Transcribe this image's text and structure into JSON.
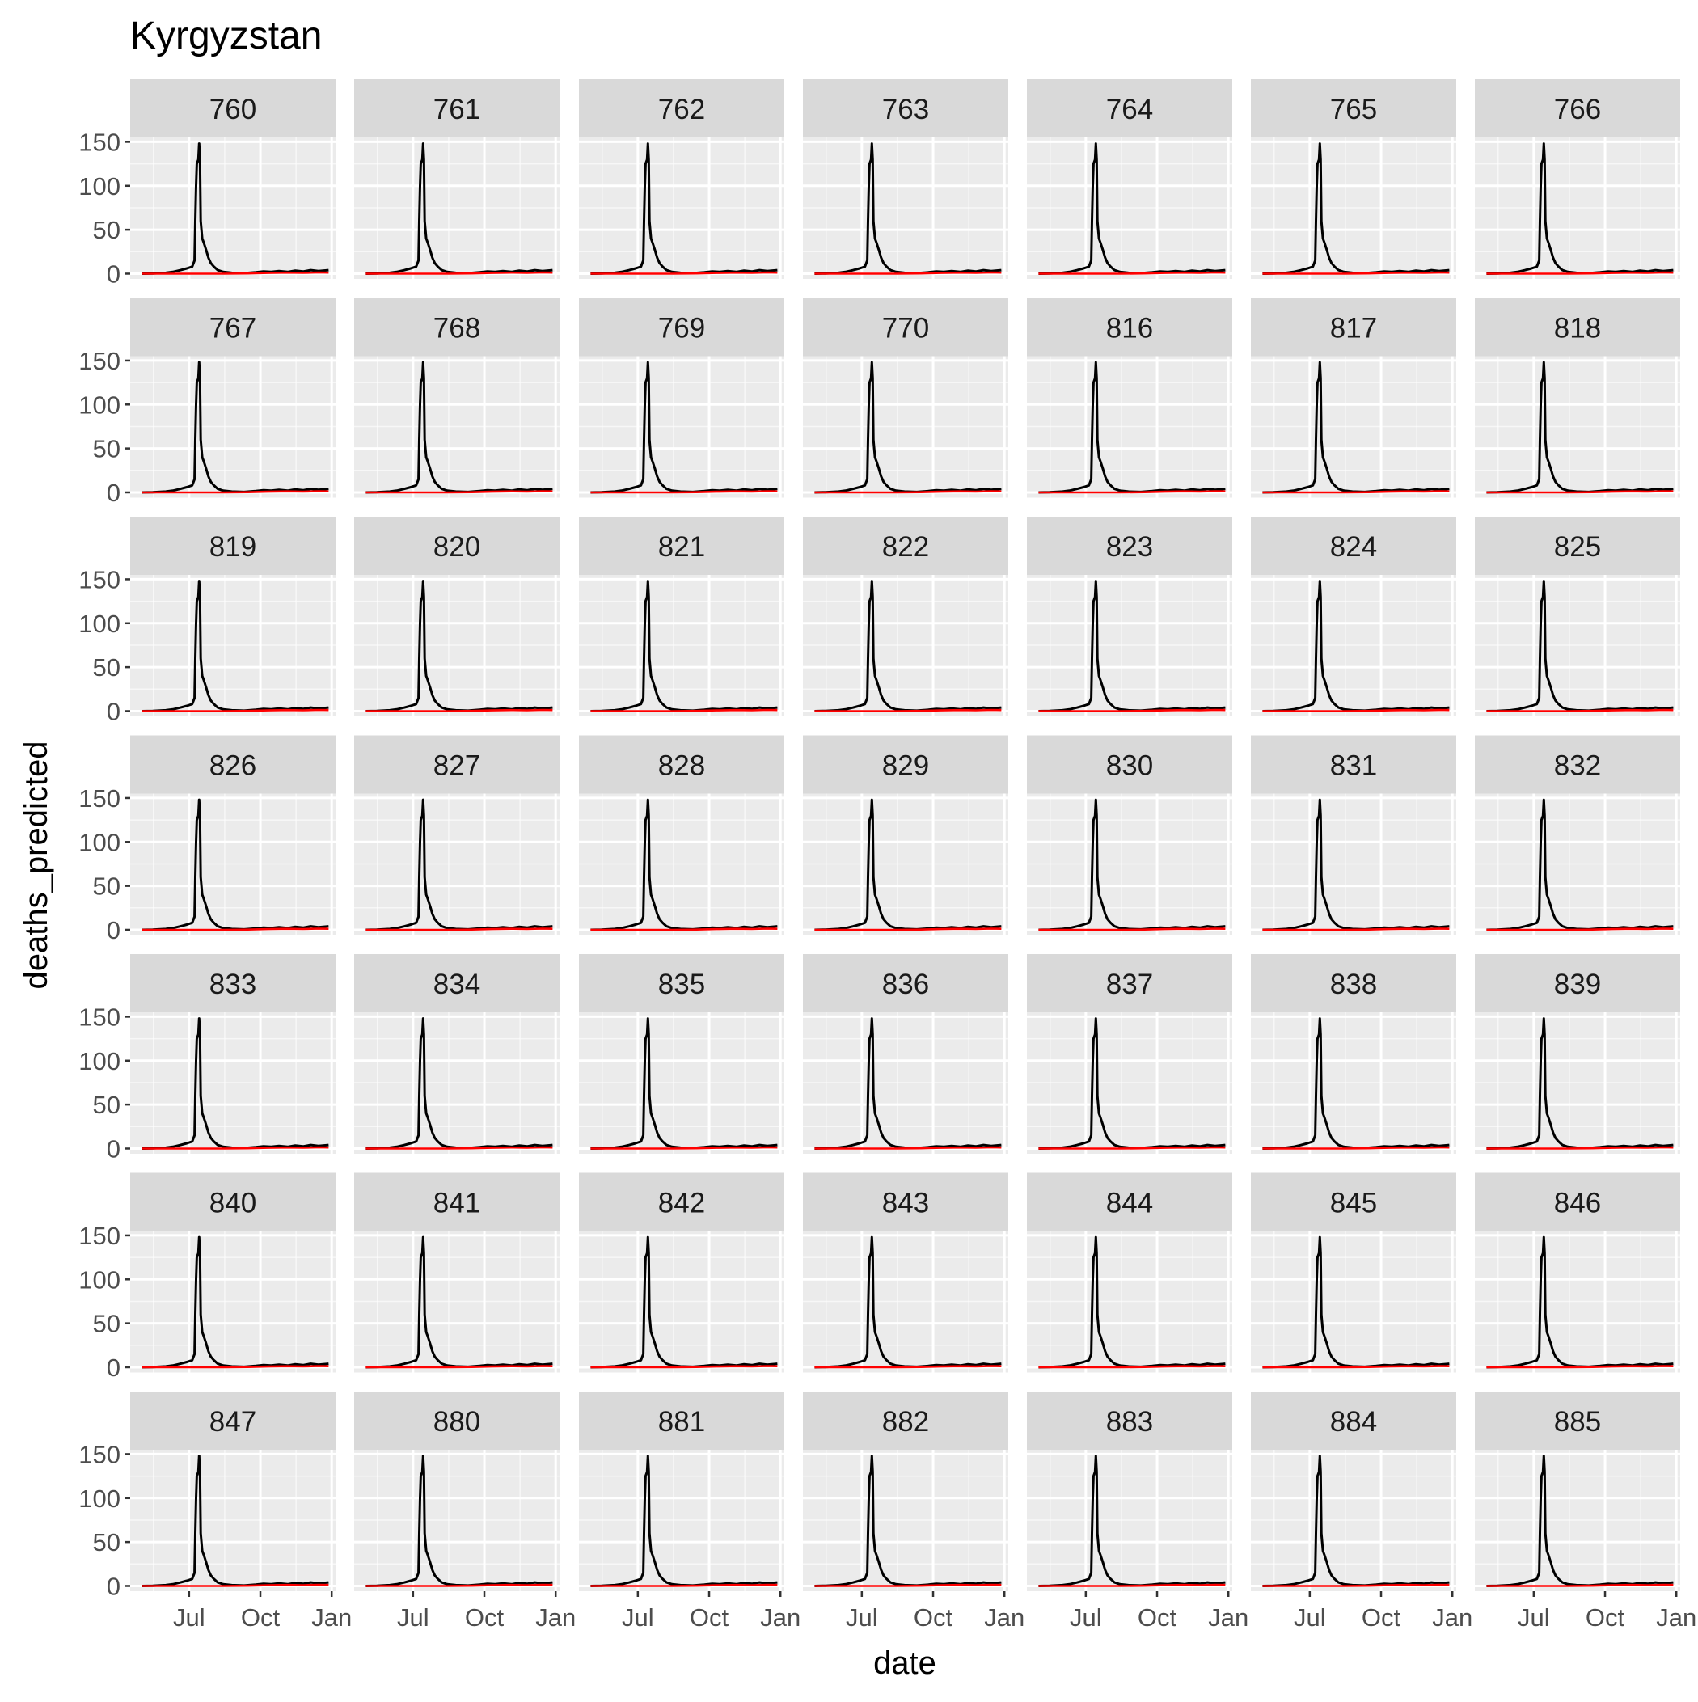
{
  "chart_data": {
    "type": "line",
    "title": "Kyrgyzstan",
    "xlabel": "date",
    "ylabel": "deaths_predicted",
    "facet_labels": [
      "760",
      "761",
      "762",
      "763",
      "764",
      "765",
      "766",
      "767",
      "768",
      "769",
      "770",
      "816",
      "817",
      "818",
      "819",
      "820",
      "821",
      "822",
      "823",
      "824",
      "825",
      "826",
      "827",
      "828",
      "829",
      "830",
      "831",
      "832",
      "833",
      "834",
      "835",
      "836",
      "837",
      "838",
      "839",
      "840",
      "841",
      "842",
      "843",
      "844",
      "845",
      "846",
      "847",
      "880",
      "881",
      "882",
      "883",
      "884",
      "885"
    ],
    "facet_ncol": 7,
    "x_ticks": [
      "Jul",
      "Oct",
      "Jan"
    ],
    "x_tick_positions": [
      "2020-07-01",
      "2020-10-01",
      "2021-01-01"
    ],
    "xlim": [
      "2020-04-16",
      "2021-01-06"
    ],
    "y_ticks": [
      0,
      50,
      100,
      150
    ],
    "ylim": [
      -6,
      155
    ],
    "grid": true,
    "series": [
      {
        "color": "#000000",
        "points": [
          [
            "2020-05-01",
            0
          ],
          [
            "2020-05-15",
            0.3
          ],
          [
            "2020-06-01",
            1
          ],
          [
            "2020-06-10",
            2
          ],
          [
            "2020-06-20",
            4
          ],
          [
            "2020-06-28",
            6
          ],
          [
            "2020-07-05",
            8
          ],
          [
            "2020-07-08",
            15
          ],
          [
            "2020-07-09",
            60
          ],
          [
            "2020-07-10",
            100
          ],
          [
            "2020-07-11",
            125
          ],
          [
            "2020-07-13",
            130
          ],
          [
            "2020-07-14",
            148
          ],
          [
            "2020-07-15",
            130
          ],
          [
            "2020-07-16",
            60
          ],
          [
            "2020-07-18",
            40
          ],
          [
            "2020-07-20",
            35
          ],
          [
            "2020-07-23",
            27
          ],
          [
            "2020-07-26",
            18
          ],
          [
            "2020-07-29",
            12
          ],
          [
            "2020-08-02",
            8
          ],
          [
            "2020-08-07",
            4
          ],
          [
            "2020-08-14",
            2
          ],
          [
            "2020-08-25",
            1
          ],
          [
            "2020-09-10",
            0.5
          ],
          [
            "2020-09-25",
            1.5
          ],
          [
            "2020-10-05",
            2.5
          ],
          [
            "2020-10-15",
            2
          ],
          [
            "2020-10-25",
            3
          ],
          [
            "2020-11-05",
            2
          ],
          [
            "2020-11-15",
            3.5
          ],
          [
            "2020-11-25",
            2.5
          ],
          [
            "2020-12-05",
            4
          ],
          [
            "2020-12-15",
            3
          ],
          [
            "2020-12-28",
            4
          ]
        ]
      },
      {
        "color": "#ff0000",
        "points": [
          [
            "2020-05-01",
            0
          ],
          [
            "2020-07-01",
            0
          ],
          [
            "2020-08-15",
            0
          ],
          [
            "2020-09-15",
            0.3
          ],
          [
            "2020-10-10",
            0.8
          ],
          [
            "2020-11-05",
            1.2
          ],
          [
            "2020-11-25",
            0.9
          ],
          [
            "2020-12-15",
            1.4
          ],
          [
            "2020-12-28",
            1.2
          ]
        ]
      }
    ]
  }
}
